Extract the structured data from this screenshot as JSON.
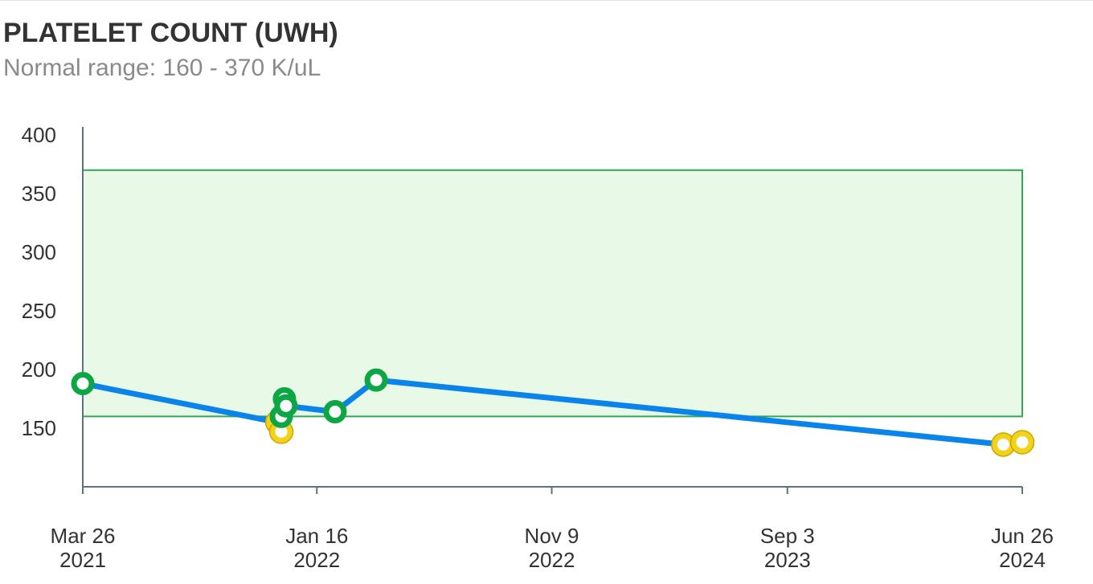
{
  "title": "PLATELET COUNT (UWH)",
  "subtitle": "Normal range: 160 - 370 K/uL",
  "colors": {
    "line": "#0a84e8",
    "normal_point": "#0ca645",
    "abnormal_point_stroke": "#c9a800",
    "abnormal_point_fill": "#f2d21a",
    "range_fill": "#e8f9e8",
    "range_stroke": "#2fa84f",
    "axis": "#5d7480"
  },
  "chart_data": {
    "type": "line",
    "title": "PLATELET COUNT (UWH)",
    "subtitle": "Normal range: 160 - 370 K/uL",
    "xlabel": "",
    "ylabel": "",
    "unit": "K/uL",
    "normal_range": [
      160,
      370
    ],
    "ylim": [
      100,
      400
    ],
    "xlim": [
      "2021-03-26",
      "2024-06-26"
    ],
    "y_ticks": [
      150,
      200,
      250,
      300,
      350,
      400
    ],
    "x_ticks": [
      {
        "date": "2021-03-26",
        "label": "Mar 26",
        "year": "2021"
      },
      {
        "date": "2022-01-16",
        "label": "Jan 16",
        "year": "2022"
      },
      {
        "date": "2022-11-09",
        "label": "Nov 9",
        "year": "2022"
      },
      {
        "date": "2023-09-03",
        "label": "Sep 3",
        "year": "2023"
      },
      {
        "date": "2024-06-26",
        "label": "Jun 26",
        "year": "2024"
      }
    ],
    "grid": false,
    "series": [
      {
        "points": [
          {
            "date": "2021-03-26",
            "value": 188,
            "status": "normal"
          },
          {
            "date": "2021-11-27",
            "value": 155,
            "status": "low"
          },
          {
            "date": "2021-12-02",
            "value": 147,
            "status": "low"
          },
          {
            "date": "2021-12-02",
            "value": 160,
            "status": "normal"
          },
          {
            "date": "2021-12-06",
            "value": 175,
            "status": "normal"
          },
          {
            "date": "2021-12-08",
            "value": 169,
            "status": "normal"
          },
          {
            "date": "2022-02-08",
            "value": 164,
            "status": "normal"
          },
          {
            "date": "2022-04-01",
            "value": 191,
            "status": "normal"
          },
          {
            "date": "2024-06-02",
            "value": 136,
            "status": "low"
          },
          {
            "date": "2024-06-26",
            "value": 138,
            "status": "low"
          }
        ]
      }
    ]
  }
}
